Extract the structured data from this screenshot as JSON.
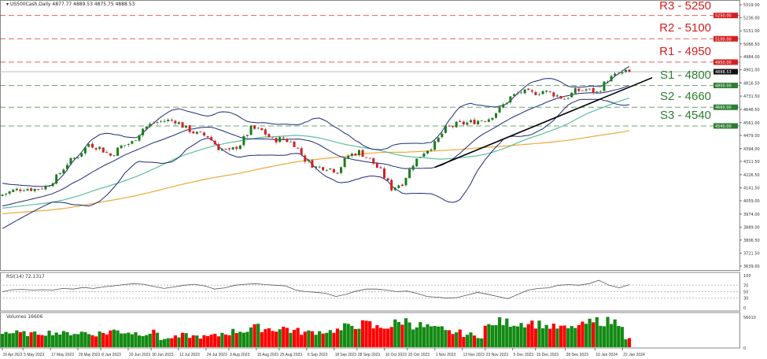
{
  "header": {
    "symbol": "US500Cash,Daily",
    "ohlc": "4877.77 4889.53 4875.75 4888.53"
  },
  "colors": {
    "bull": "#1b7d1b",
    "bear": "#d42020",
    "bands": "#1f2a78",
    "ma_fast": "#5cbf9a",
    "ma_slow": "#eda93a",
    "resistance": "#d42020",
    "support": "#2e7d32",
    "trendline": "#000000",
    "volume_up": "#138a13",
    "volume_down": "#ff0000"
  },
  "chart_data": [
    {
      "type": "candlestick",
      "title": "US500Cash,Daily",
      "ylim": [
        3639,
        5319
      ],
      "y_ticks": [
        "5319.00",
        "5236.00",
        "5151.00",
        "5066.50",
        "4984.00",
        "4901.00",
        "4816.50",
        "4731.50",
        "4646.50",
        "4561.00",
        "4479.00",
        "4394.00",
        "4311.50",
        "4226.50",
        "4141.50",
        "4059.00",
        "3974.00",
        "3889.00",
        "3806.50",
        "3721.50",
        "3639.00"
      ],
      "x_ticks": [
        "26 Apr 2023",
        "5 May 2023",
        "17 May 2023",
        "29 May 2023",
        "8 Jun 2023",
        "20 Jun 2023",
        "30 Jun 2023",
        "12 Jul 2023",
        "24 Jul 2023",
        "3 Aug 2023",
        "15 Aug 2023",
        "25 Aug 2023",
        "6 Sep 2023",
        "18 Sep 2023",
        "28 Sep 2023",
        "10 Oct 2023",
        "20 Oct 2023",
        "1 Nov 2023",
        "13 Nov 2023",
        "23 Nov 2023",
        "5 Dec 2023",
        "15 Dec 2023",
        "28 Dec 2023",
        "10 Jan 2024",
        "22 Jan 2024"
      ],
      "date_range": [
        "26 Apr 2023",
        "25 Jan 2024"
      ],
      "approx_closes": [
        4099,
        4124,
        4139,
        4134,
        4149,
        4209,
        4299,
        4349,
        4424,
        4399,
        4349,
        4409,
        4434,
        4524,
        4559,
        4574,
        4574,
        4524,
        4489,
        4474,
        4399,
        4374,
        4424,
        4524,
        4509,
        4449,
        4459,
        4424,
        4324,
        4274,
        4274,
        4249,
        4349,
        4374,
        4324,
        4249,
        4139,
        4174,
        4299,
        4374,
        4424,
        4524,
        4549,
        4559,
        4574,
        4589,
        4649,
        4724,
        4759,
        4749,
        4764,
        4744,
        4714,
        4764,
        4774,
        4754,
        4839,
        4874,
        4888.53
      ],
      "last_price": {
        "value": 4888.53,
        "label": "4888.53"
      },
      "indicators": [
        "Bollinger Bands (20)",
        "MA 50",
        "MA 100"
      ],
      "levels": [
        {
          "name": "R3 - 5250",
          "value": 5250,
          "tag": "5250.00",
          "kind": "resistance"
        },
        {
          "name": "R2 - 5100",
          "value": 5100,
          "tag": "5100.00",
          "kind": "resistance"
        },
        {
          "name": "R1 - 4950",
          "value": 4950,
          "tag": "4950.00",
          "kind": "resistance"
        },
        {
          "name": "S1 - 4800",
          "value": 4800,
          "tag": "4800.00",
          "kind": "support"
        },
        {
          "name": "S2 - 4660",
          "value": 4660,
          "tag": "4660.00",
          "kind": "support"
        },
        {
          "name": "S3 - 4540",
          "value": 4540,
          "tag": "4540.00",
          "kind": "support"
        }
      ],
      "trendline": {
        "from": {
          "date": "1 Nov 2023",
          "price": 4274
        },
        "to": {
          "date": "4 Feb 2024",
          "price": 4850
        }
      }
    },
    {
      "type": "line",
      "title": "RSI(14) 72.1317",
      "ylim": [
        0,
        100
      ],
      "y_ticks": [
        "100",
        "70",
        "50",
        "30",
        "0"
      ],
      "levels": [
        70,
        50,
        30
      ],
      "values": [
        50,
        56,
        57,
        55,
        56,
        55,
        60,
        58,
        63,
        60,
        65,
        68,
        72,
        75,
        73,
        66,
        60,
        65,
        70,
        73,
        68,
        58,
        62,
        70,
        73,
        75,
        72,
        70,
        68,
        55,
        50,
        48,
        45,
        35,
        42,
        52,
        58,
        58,
        55,
        50,
        52,
        45,
        35,
        33,
        30,
        32,
        40,
        48,
        42,
        35,
        28,
        42,
        55,
        60,
        62,
        70,
        72,
        70,
        75,
        85,
        70,
        62,
        72
      ]
    },
    {
      "type": "bar",
      "title": "Volumes 16606",
      "ylim": [
        0,
        56010
      ],
      "y_ticks": [
        "56010",
        "0"
      ],
      "approx_volumes": [
        28000,
        26000,
        25000,
        24000,
        26000,
        27000,
        25000,
        26000,
        27000,
        24000,
        26000,
        30000,
        28000,
        26000,
        25000,
        27000,
        15000,
        18000,
        22000,
        20000,
        19000,
        21000,
        26000,
        29000,
        30000,
        36000,
        34000,
        33000,
        35000,
        30000,
        27000,
        28000,
        29000,
        31000,
        37000,
        40000,
        42000,
        36000,
        38000,
        44000,
        48000,
        40000,
        37000,
        33000,
        28000,
        27000,
        23000,
        20000,
        38000,
        46000,
        45000,
        44000,
        45000,
        42000,
        38000,
        36000,
        34000,
        39000,
        44000,
        48000,
        47000,
        46000,
        16606
      ]
    }
  ]
}
